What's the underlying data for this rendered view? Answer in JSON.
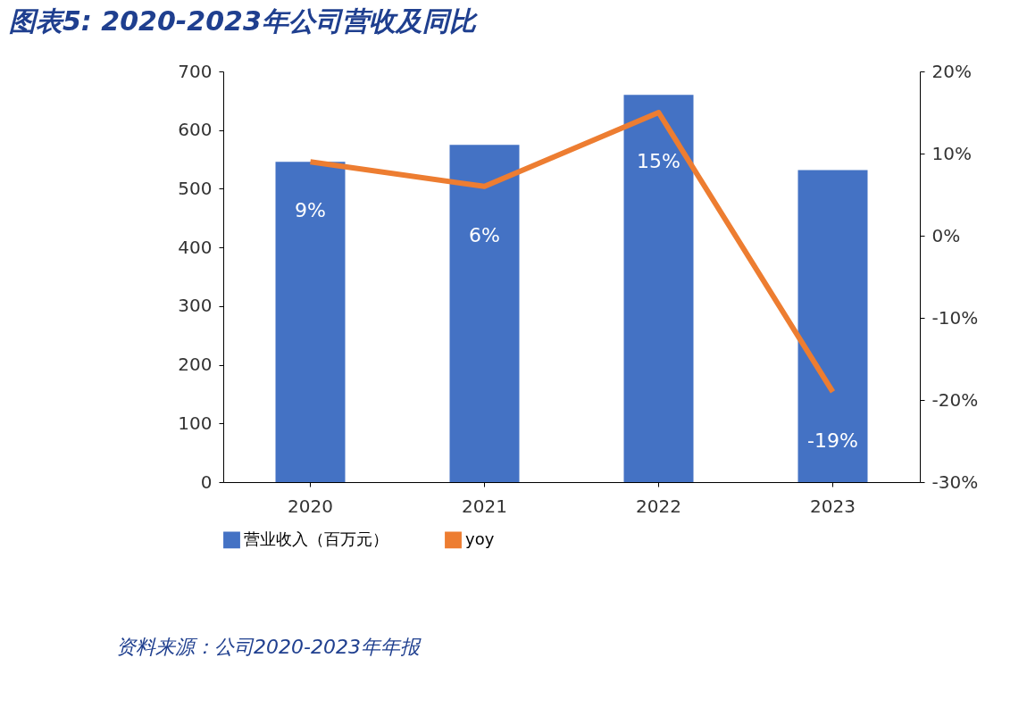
{
  "chart_data": {
    "type": "bar",
    "title": "图表5:  2020-2023年公司营收及同比",
    "categories": [
      "2020",
      "2021",
      "2022",
      "2023"
    ],
    "series": [
      {
        "name": "营业收入（百万元）",
        "color": "#4472c4",
        "values": [
          546,
          575,
          660,
          532
        ]
      },
      {
        "name": "yoy",
        "type": "line",
        "axis": "y2",
        "color": "#ed7d31",
        "values": [
          9,
          6,
          15,
          -19
        ],
        "value_labels": [
          "9%",
          "6%",
          "15%",
          "-19%"
        ]
      }
    ],
    "ylim": [
      0,
      700
    ],
    "yticks": [
      0,
      100,
      200,
      300,
      400,
      500,
      600,
      700
    ],
    "y2lim": [
      -30,
      20
    ],
    "y2ticks": [
      {
        "value": -30,
        "label": "-30%"
      },
      {
        "value": -20,
        "label": "-20%"
      },
      {
        "value": -10,
        "label": "-10%"
      },
      {
        "value": 0,
        "label": "0%"
      },
      {
        "value": 10,
        "label": "10%"
      },
      {
        "value": 20,
        "label": "20%"
      }
    ],
    "legend": "bottom",
    "grid": false,
    "marker": "none",
    "annotations": [
      "资料来源：公司2020-2023年年报"
    ]
  }
}
